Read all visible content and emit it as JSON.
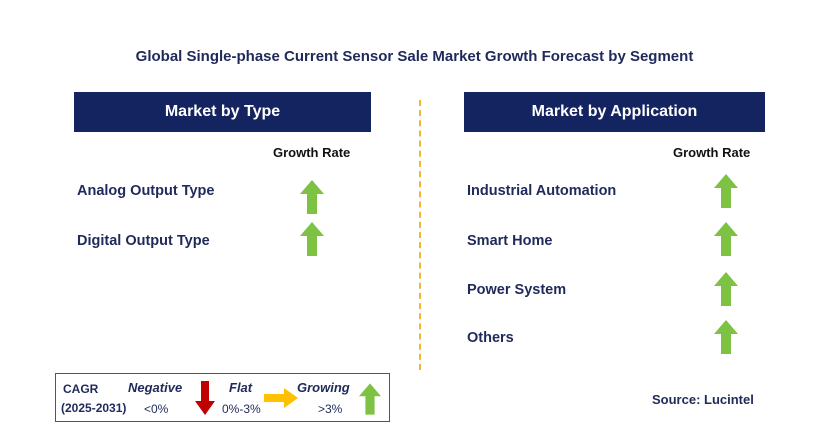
{
  "title": "Global Single-phase Current Sensor Sale Market Growth Forecast by Segment",
  "left_panel": {
    "header": "Market by Type",
    "growth_label": "Growth Rate",
    "items": [
      {
        "label": "Analog Output Type",
        "trend": "growing"
      },
      {
        "label": "Digital Output Type",
        "trend": "growing"
      }
    ]
  },
  "right_panel": {
    "header": "Market by Application",
    "growth_label": "Growth Rate",
    "items": [
      {
        "label": "Industrial Automation",
        "trend": "growing"
      },
      {
        "label": "Smart Home",
        "trend": "growing"
      },
      {
        "label": "Power System",
        "trend": "growing"
      },
      {
        "label": "Others",
        "trend": "growing"
      }
    ]
  },
  "legend": {
    "cagr_label": "CAGR",
    "period": "(2025-2031)",
    "negative_label": "Negative",
    "negative_value": "<0%",
    "flat_label": "Flat",
    "flat_value": "0%-3%",
    "growing_label": "Growing",
    "growing_value": ">3%"
  },
  "source": "Source: Lucintel",
  "colors": {
    "header_bg": "#142461",
    "growing": "#7dc242",
    "negative": "#c00000",
    "flat": "#ffc000",
    "divider": "#f2b632"
  },
  "icons": {
    "growing": "up-arrow-icon",
    "negative": "down-arrow-icon",
    "flat": "right-arrow-icon"
  }
}
